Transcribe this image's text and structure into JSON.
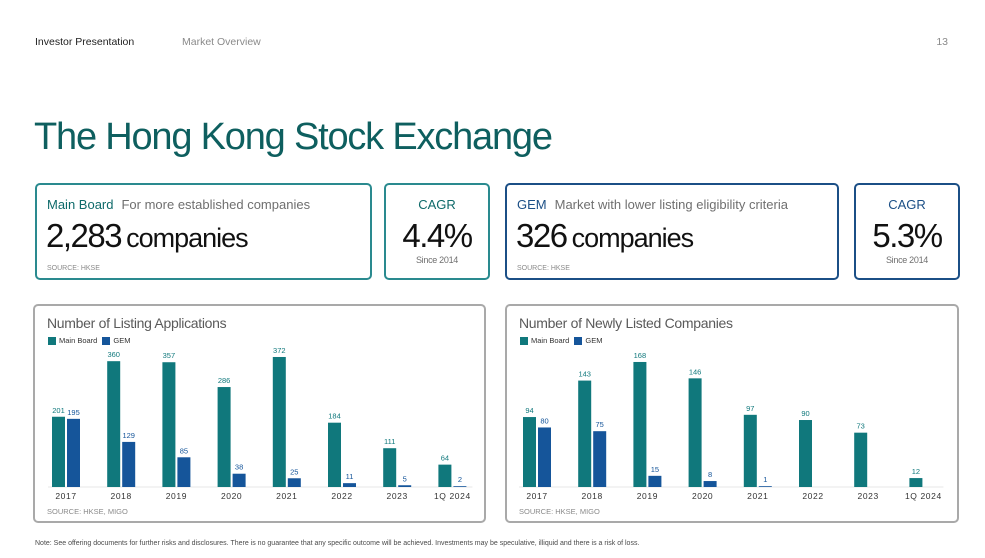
{
  "header": {
    "left": "Investor Presentation",
    "section": "Market Overview",
    "page_number": "13"
  },
  "title": "The Hong Kong Stock Exchange",
  "colors": {
    "teal": "#10787c",
    "navy": "#15559a",
    "title": "#0e5f5f"
  },
  "main_board": {
    "name": "Main Board",
    "description": "For more established companies",
    "count": "2,283",
    "unit": "companies",
    "source": "SOURCE: HKSE"
  },
  "main_cagr": {
    "label": "CAGR",
    "value": "4.4%",
    "since": "Since 2014"
  },
  "gem": {
    "name": "GEM",
    "description": "Market with lower listing eligibility criteria",
    "count": "326",
    "unit": "companies",
    "source": "SOURCE: HKSE"
  },
  "gem_cagr": {
    "label": "CAGR",
    "value": "5.3%",
    "since": "Since 2014"
  },
  "chart_data": [
    {
      "type": "bar",
      "title": "Number of Listing Applications",
      "categories": [
        "2017",
        "2018",
        "2019",
        "2020",
        "2021",
        "2022",
        "2023",
        "1Q 2024"
      ],
      "series": [
        {
          "name": "Main Board",
          "color": "#10787c",
          "values": [
            201,
            360,
            357,
            286,
            372,
            184,
            111,
            64
          ]
        },
        {
          "name": "GEM",
          "color": "#15559a",
          "values": [
            195,
            129,
            85,
            38,
            25,
            11,
            5,
            2
          ]
        }
      ],
      "source": "SOURCE: HKSE, MIGO",
      "legend_position": "top-left",
      "grid": false
    },
    {
      "type": "bar",
      "title": "Number of Newly Listed Companies",
      "categories": [
        "2017",
        "2018",
        "2019",
        "2020",
        "2021",
        "2022",
        "2023",
        "1Q 2024"
      ],
      "series": [
        {
          "name": "Main Board",
          "color": "#10787c",
          "values": [
            94,
            143,
            168,
            146,
            97,
            90,
            73,
            12
          ]
        },
        {
          "name": "GEM",
          "color": "#15559a",
          "values": [
            80,
            75,
            15,
            8,
            1,
            null,
            null,
            null
          ]
        }
      ],
      "source": "SOURCE: HKSE, MIGO",
      "legend_position": "top-left",
      "grid": false
    }
  ],
  "footnote": "Note: See offering documents for further risks and disclosures. There is no guarantee that any specific outcome will be achieved. Investments may be speculative, illiquid and there is a risk of loss."
}
